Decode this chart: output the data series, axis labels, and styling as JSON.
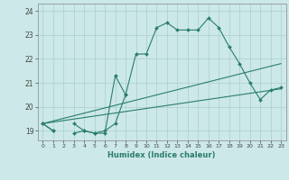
{
  "xlabel": "Humidex (Indice chaleur)",
  "x_values": [
    0,
    1,
    2,
    3,
    4,
    5,
    6,
    7,
    8,
    9,
    10,
    11,
    12,
    13,
    14,
    15,
    16,
    17,
    18,
    19,
    20,
    21,
    22,
    23
  ],
  "line_jagged_long": [
    19.3,
    19.0,
    null,
    18.9,
    19.0,
    18.9,
    19.0,
    19.3,
    20.5,
    22.2,
    22.2,
    23.3,
    23.5,
    23.2,
    23.2,
    23.2,
    23.7,
    23.3,
    22.5,
    21.8,
    21.0,
    20.3,
    20.7,
    20.8
  ],
  "line_jagged_short": [
    19.3,
    19.0,
    null,
    19.3,
    19.0,
    18.9,
    18.9,
    21.3,
    20.5,
    null,
    null,
    null,
    null,
    null,
    null,
    null,
    null,
    null,
    null,
    null,
    null,
    null,
    null,
    null
  ],
  "line_straight1": {
    "x0": 0,
    "y0": 19.3,
    "x1": 23,
    "y1": 20.75
  },
  "line_straight2": {
    "x0": 0,
    "y0": 19.3,
    "x1": 23,
    "y1": 21.8
  },
  "ylim": [
    18.6,
    24.3
  ],
  "xlim": [
    -0.5,
    23.5
  ],
  "yticks": [
    19,
    20,
    21,
    22,
    23,
    24
  ],
  "xticks": [
    0,
    1,
    2,
    3,
    4,
    5,
    6,
    7,
    8,
    9,
    10,
    11,
    12,
    13,
    14,
    15,
    16,
    17,
    18,
    19,
    20,
    21,
    22,
    23
  ],
  "line_color": "#2a7d6e",
  "bg_color": "#cce8e8",
  "grid_color": "#aacfcf",
  "spine_color": "#888888"
}
